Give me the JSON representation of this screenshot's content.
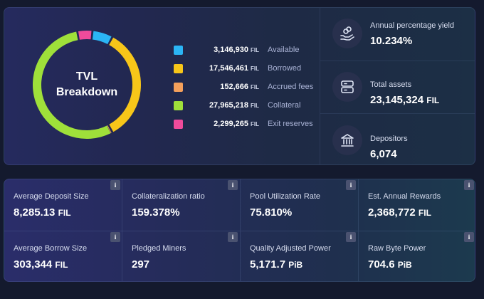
{
  "donut": {
    "title_line1": "TVL",
    "title_line2": "Breakdown"
  },
  "chart_data": {
    "type": "pie",
    "categories": [
      "Available",
      "Borrowed",
      "Accrued fees",
      "Collateral",
      "Exit reserves"
    ],
    "values": [
      3146930,
      17546461,
      152666,
      27965218,
      2299265
    ],
    "colors": [
      "#2bb5f5",
      "#f7c619",
      "#f5a05b",
      "#9fe03a",
      "#ef4b9b"
    ],
    "unit": "FIL",
    "title": "TVL Breakdown"
  },
  "legend": [
    {
      "value": "3,146,930",
      "unit": "FIL",
      "label": "Available",
      "color": "#2bb5f5"
    },
    {
      "value": "17,546,461",
      "unit": "FIL",
      "label": "Borrowed",
      "color": "#f7c619"
    },
    {
      "value": "152,666",
      "unit": "FIL",
      "label": "Accrued fees",
      "color": "#f5a05b"
    },
    {
      "value": "27,965,218",
      "unit": "FIL",
      "label": "Collateral",
      "color": "#9fe03a"
    },
    {
      "value": "2,299,265",
      "unit": "FIL",
      "label": "Exit reserves",
      "color": "#ef4b9b"
    }
  ],
  "stats": [
    {
      "label": "Annual percentage yield",
      "value": "10.234%",
      "unit": "",
      "icon": "hand-coins-icon"
    },
    {
      "label": "Total assets",
      "value": "23,145,324",
      "unit": "FIL",
      "icon": "database-icon"
    },
    {
      "label": "Depositors",
      "value": "6,074",
      "unit": "",
      "icon": "bank-icon"
    }
  ],
  "metrics": [
    {
      "label": "Average Deposit Size",
      "value": "8,285.13",
      "unit": "FIL",
      "info": "i"
    },
    {
      "label": "Collateralization ratio",
      "value": "159.378%",
      "unit": "",
      "info": "i"
    },
    {
      "label": "Pool Utilization Rate",
      "value": "75.810%",
      "unit": "",
      "info": "i"
    },
    {
      "label": "Est. Annual Rewards",
      "value": "2,368,772",
      "unit": "FIL",
      "info": "i"
    },
    {
      "label": "Average Borrow Size",
      "value": "303,344",
      "unit": "FIL",
      "info": "i"
    },
    {
      "label": "Pledged Miners",
      "value": "297",
      "unit": "",
      "info": "i"
    },
    {
      "label": "Quality Adjusted Power",
      "value": "5,171.7",
      "unit": "PiB",
      "info": "i"
    },
    {
      "label": "Raw Byte Power",
      "value": "704.6",
      "unit": "PiB",
      "info": "i"
    }
  ]
}
